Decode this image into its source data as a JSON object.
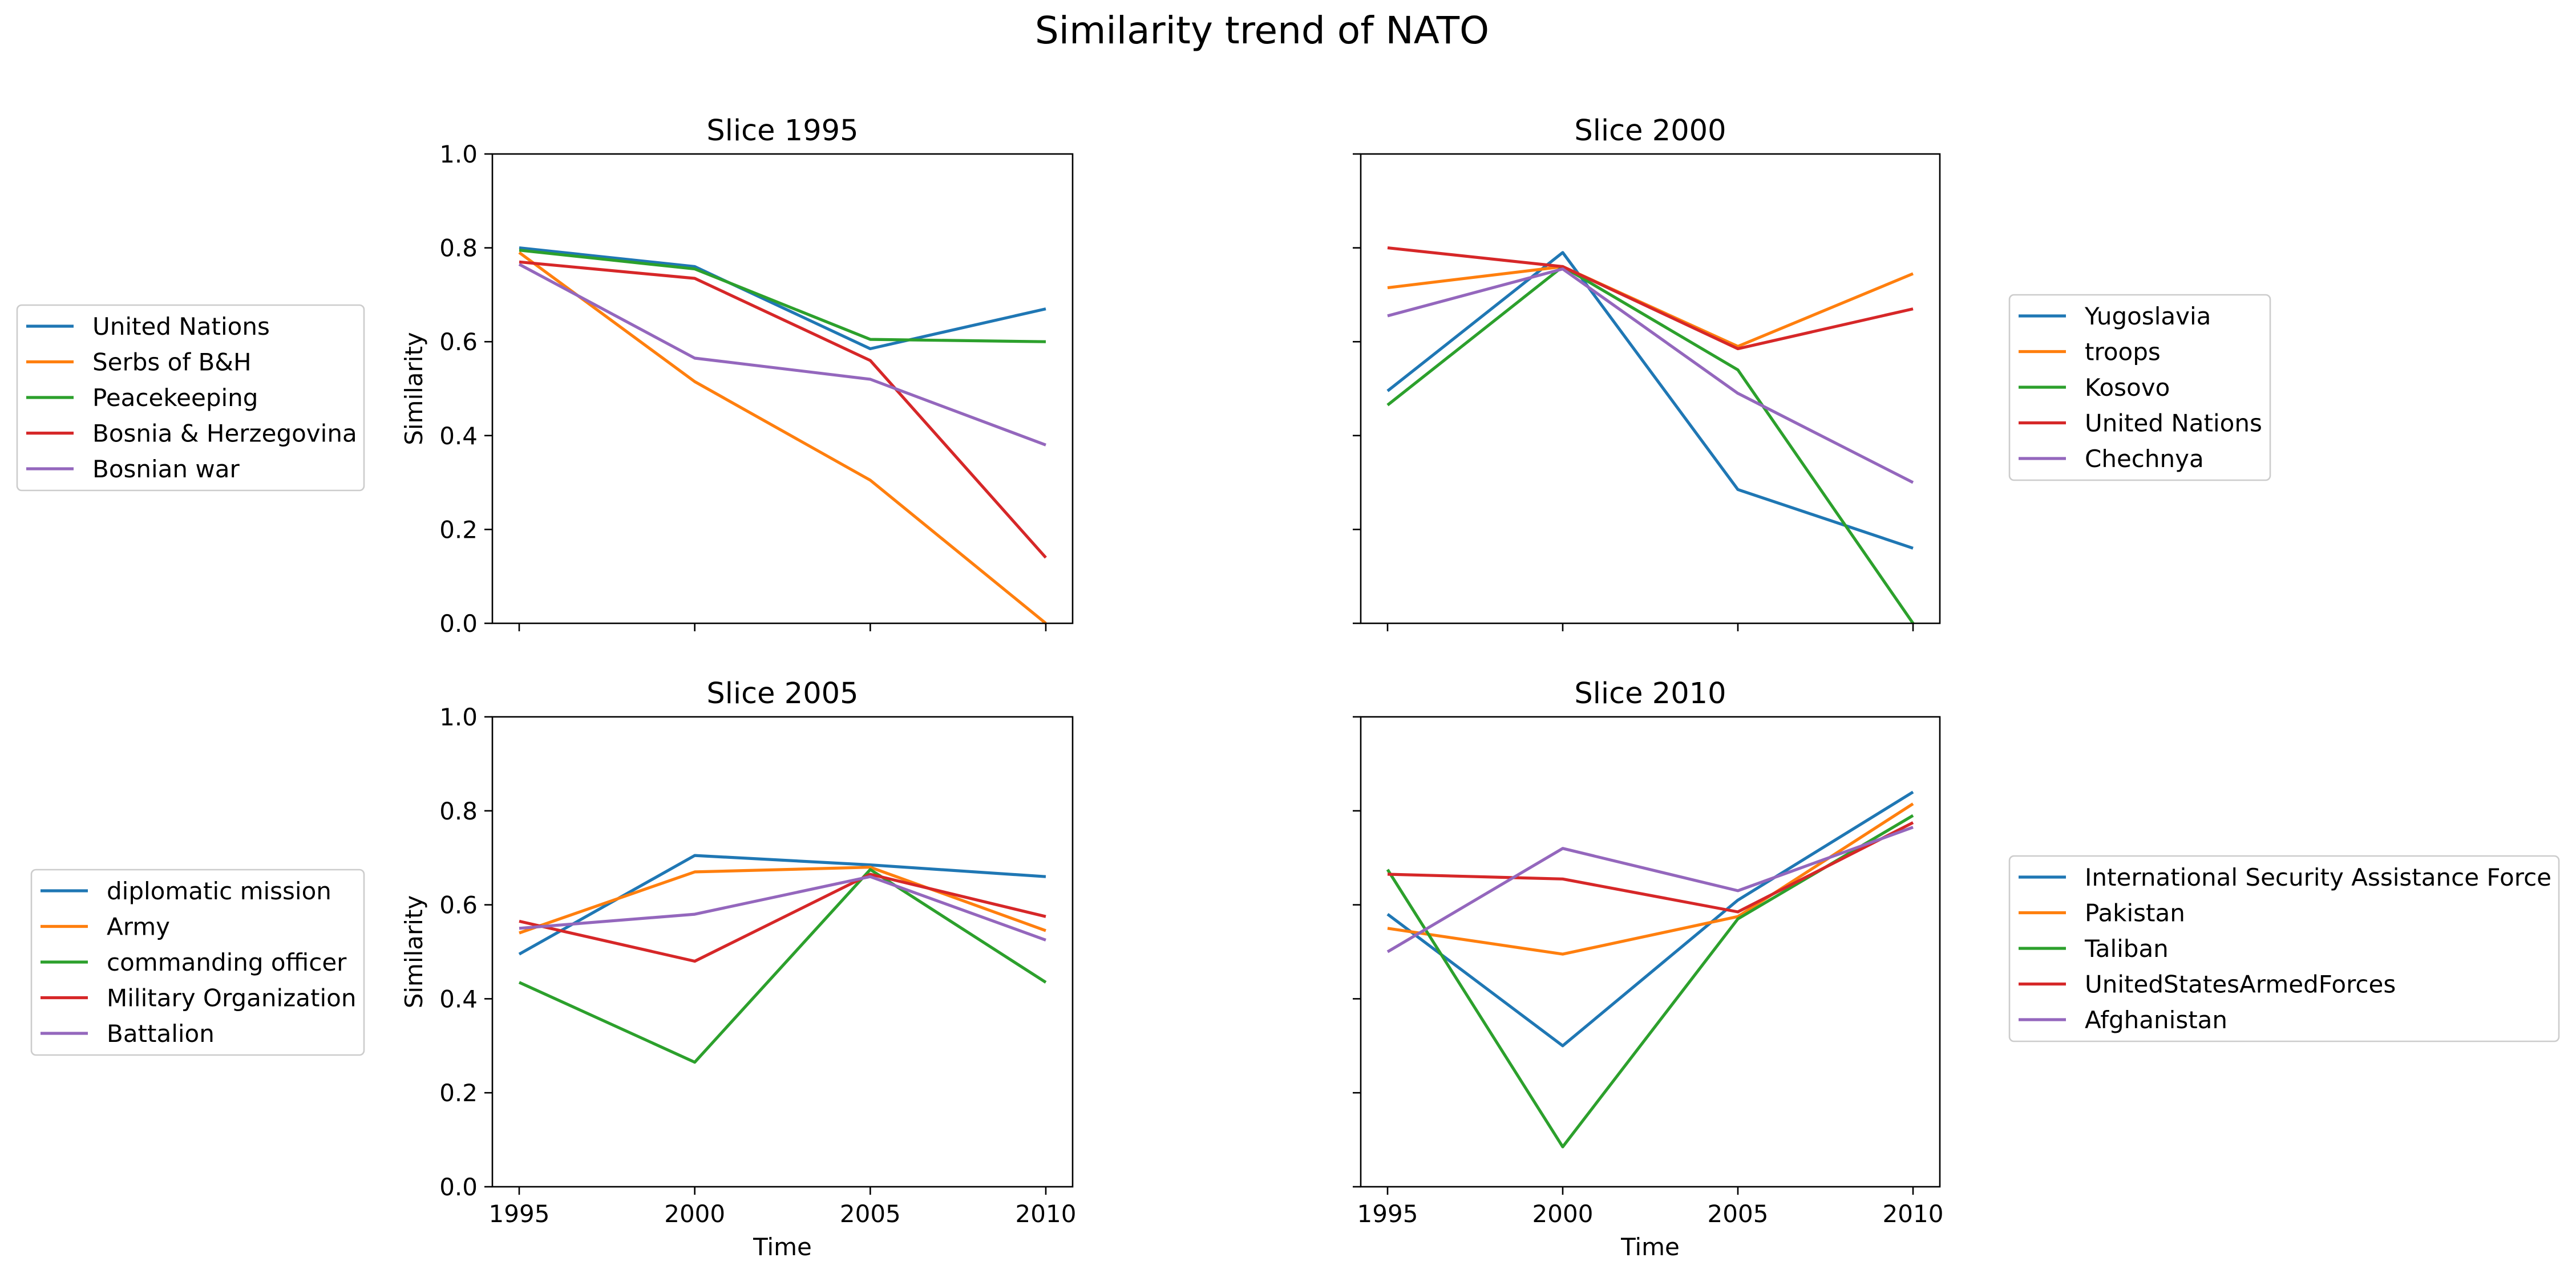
{
  "figure": {
    "title": "Similarity trend of NATO"
  },
  "colors": {
    "c0": "#1f77b4",
    "c1": "#ff7f0e",
    "c2": "#2ca02c",
    "c3": "#d62728",
    "c4": "#9467bd"
  },
  "chart_data": [
    {
      "type": "line",
      "title": "Slice 1995",
      "xlabel": "",
      "ylabel": "Similarity",
      "x": [
        1995,
        2000,
        2005,
        2010
      ],
      "xticks": [
        "1995",
        "2000",
        "2005",
        "2010"
      ],
      "yticks": [
        "0.0",
        "0.2",
        "0.4",
        "0.6",
        "0.8",
        "1.0"
      ],
      "ylim": [
        0,
        1
      ],
      "legend": "left",
      "series": [
        {
          "name": "United Nations",
          "values": [
            0.8,
            0.76,
            0.585,
            0.67
          ]
        },
        {
          "name": "Serbs of B&H",
          "values": [
            0.79,
            0.515,
            0.305,
            0.0
          ]
        },
        {
          "name": "Peacekeeping",
          "values": [
            0.795,
            0.755,
            0.605,
            0.6
          ]
        },
        {
          "name": "Bosnia & Herzegovina",
          "values": [
            0.77,
            0.735,
            0.56,
            0.14
          ]
        },
        {
          "name": "Bosnian war",
          "values": [
            0.765,
            0.565,
            0.52,
            0.38
          ]
        }
      ]
    },
    {
      "type": "line",
      "title": "Slice 2000",
      "xlabel": "",
      "ylabel": "",
      "x": [
        1995,
        2000,
        2005,
        2010
      ],
      "xticks": [
        "1995",
        "2000",
        "2005",
        "2010"
      ],
      "yticks": [],
      "ylim": [
        0,
        1
      ],
      "legend": "right",
      "series": [
        {
          "name": "Yugoslavia",
          "values": [
            0.495,
            0.79,
            0.285,
            0.16
          ]
        },
        {
          "name": "troops",
          "values": [
            0.715,
            0.76,
            0.59,
            0.745
          ]
        },
        {
          "name": "Kosovo",
          "values": [
            0.465,
            0.76,
            0.54,
            0.0
          ]
        },
        {
          "name": "United Nations",
          "values": [
            0.8,
            0.76,
            0.585,
            0.67
          ]
        },
        {
          "name": "Chechnya",
          "values": [
            0.655,
            0.755,
            0.49,
            0.3
          ]
        }
      ]
    },
    {
      "type": "line",
      "title": "Slice 2005",
      "xlabel": "Time",
      "ylabel": "Similarity",
      "x": [
        1995,
        2000,
        2005,
        2010
      ],
      "xticks": [
        "1995",
        "2000",
        "2005",
        "2010"
      ],
      "yticks": [
        "0.0",
        "0.2",
        "0.4",
        "0.6",
        "0.8",
        "1.0"
      ],
      "ylim": [
        0,
        1
      ],
      "legend": "left",
      "series": [
        {
          "name": "diplomatic mission",
          "values": [
            0.495,
            0.705,
            0.685,
            0.66
          ]
        },
        {
          "name": "Army",
          "values": [
            0.54,
            0.67,
            0.68,
            0.545
          ]
        },
        {
          "name": "commanding officer",
          "values": [
            0.435,
            0.265,
            0.675,
            0.435
          ]
        },
        {
          "name": "Military Organization",
          "values": [
            0.565,
            0.48,
            0.665,
            0.575
          ]
        },
        {
          "name": "Battalion",
          "values": [
            0.55,
            0.58,
            0.66,
            0.525
          ]
        }
      ]
    },
    {
      "type": "line",
      "title": "Slice 2010",
      "xlabel": "Time",
      "ylabel": "",
      "x": [
        1995,
        2000,
        2005,
        2010
      ],
      "xticks": [
        "1995",
        "2000",
        "2005",
        "2010"
      ],
      "yticks": [],
      "ylim": [
        0,
        1
      ],
      "legend": "right",
      "series": [
        {
          "name": "International Security Assistance Force",
          "values": [
            0.58,
            0.3,
            0.61,
            0.84
          ]
        },
        {
          "name": "Pakistan",
          "values": [
            0.55,
            0.495,
            0.575,
            0.815
          ]
        },
        {
          "name": "Taliban",
          "values": [
            0.675,
            0.085,
            0.57,
            0.79
          ]
        },
        {
          "name": "UnitedStatesArmedForces",
          "values": [
            0.665,
            0.655,
            0.585,
            0.775
          ]
        },
        {
          "name": "Afghanistan",
          "values": [
            0.5,
            0.72,
            0.63,
            0.765
          ]
        }
      ]
    }
  ]
}
